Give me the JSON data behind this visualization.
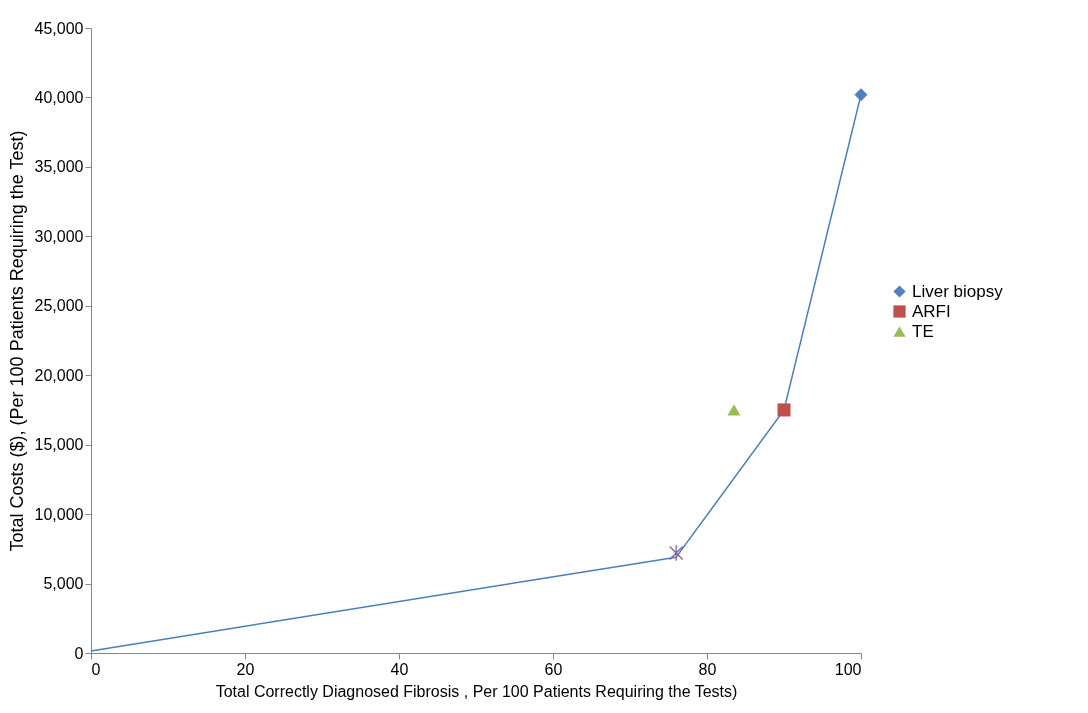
{
  "chart_data": {
    "type": "scatter",
    "xlabel": "Total Correctly Diagnosed Fibrosis , Per 100 Patients Requiring the Tests)",
    "ylabel": "Total Costs ($), (Per 100 Patients Requiring the Test)",
    "xlim": [
      0,
      100
    ],
    "xticks": [
      0,
      20,
      40,
      60,
      80,
      100
    ],
    "ylim": [
      0,
      45000
    ],
    "yticks": [
      0,
      {
        "value": 5000,
        "label": "5,000"
      },
      {
        "value": 10000,
        "label": "10,000"
      },
      {
        "value": 15000,
        "label": "15,000"
      },
      {
        "value": 20000,
        "label": "20,000"
      },
      {
        "value": 25000,
        "label": "25,000"
      },
      {
        "value": 30000,
        "label": "30,000"
      },
      {
        "value": 35000,
        "label": "35,000"
      },
      {
        "value": 40000,
        "label": "40,000"
      },
      {
        "value": 45000,
        "label": "45,000"
      }
    ],
    "grid": false,
    "legend": "right",
    "series": [
      {
        "type": "line",
        "color": "#4a7ebb",
        "x": [
          0,
          76,
          90,
          100
        ],
        "values": [
          150,
          6900,
          17500,
          40200
        ],
        "line_style": "solid"
      },
      {
        "name": "Liver biopsy",
        "color": "#4f81bd",
        "x": [
          100
        ],
        "values": [
          40200
        ],
        "marker": "diamond"
      },
      {
        "name": "ARFI",
        "color": "#c0504d",
        "x": [
          90
        ],
        "values": [
          17500
        ],
        "marker": "square"
      },
      {
        "name": "TE",
        "color": "#9bbb59",
        "x": [
          83.5
        ],
        "values": [
          17500
        ],
        "marker": "triangle"
      },
      {
        "color": "#8064a2",
        "x": [
          76
        ],
        "values": [
          7200
        ],
        "marker": "cross"
      }
    ]
  }
}
